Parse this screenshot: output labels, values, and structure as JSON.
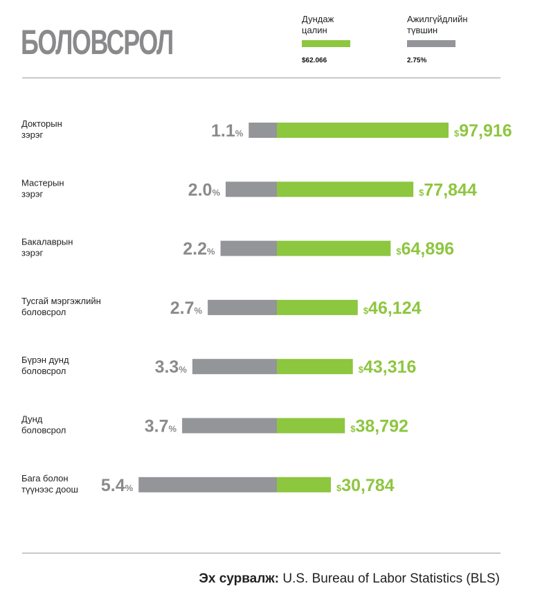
{
  "title": "БОЛОВСРОЛ",
  "legend": {
    "salary": {
      "label": "Дундаж\nцалин",
      "value": "$62.066",
      "color": "#8dc63f"
    },
    "unemployment": {
      "label": "Ажилгүйдлийн\nтүвшин",
      "value": "2.75%",
      "color": "#939598"
    }
  },
  "chart_data": {
    "type": "bar",
    "title": "БОЛОВСРОЛ",
    "categories": [
      "Докторын\nзэрэг",
      "Мастерын\nзэрэг",
      "Бакалаврын\nзэрэг",
      "Тусгай мэргэжлийн\nболовсрол",
      "Бүрэн дунд\nболовсрол",
      "Дунд\nболовсрол",
      "Бага болон\nтүүнээс доош"
    ],
    "series": [
      {
        "name": "Ажилгүйдлийн түвшин",
        "unit": "%",
        "values": [
          1.1,
          2.0,
          2.2,
          2.7,
          3.3,
          3.7,
          5.4
        ],
        "value_labels": [
          [
            "1.1",
            "%"
          ],
          [
            "2.0",
            "%"
          ],
          [
            "2.2",
            "%"
          ],
          [
            "2.7",
            "%"
          ],
          [
            "3.3",
            "%"
          ],
          [
            "3.7",
            "%"
          ],
          [
            "5.4",
            "%"
          ]
        ]
      },
      {
        "name": "Дундаж цалин",
        "unit": "$",
        "values": [
          97916,
          77844,
          64896,
          46124,
          43316,
          38792,
          30784
        ],
        "value_labels": [
          [
            "$",
            "97,916"
          ],
          [
            "$",
            "77,844"
          ],
          [
            "$",
            "64,896"
          ],
          [
            "$",
            "46,124"
          ],
          [
            "$",
            "43,316"
          ],
          [
            "$",
            "38,792"
          ],
          [
            "$",
            "30,784"
          ]
        ]
      }
    ],
    "colors": {
      "unemployment": "#939598",
      "salary": "#8dc63f"
    }
  },
  "source": {
    "label": "Эх сурвалж:",
    "text": " U.S. Bureau of Labor Statistics (BLS)"
  }
}
